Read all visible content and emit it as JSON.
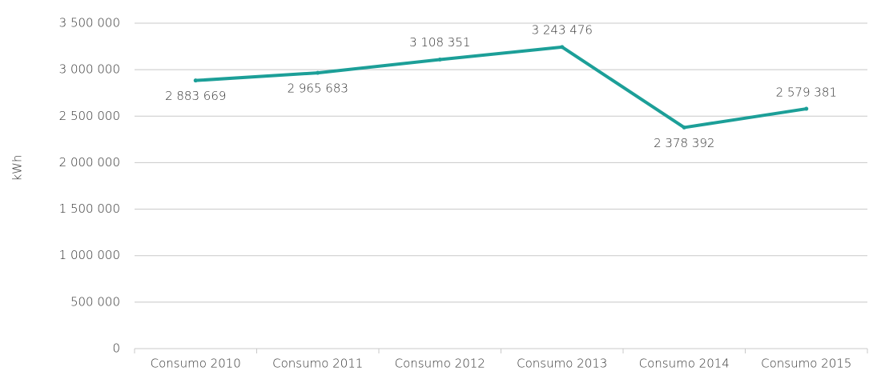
{
  "chart_data": {
    "type": "line",
    "y_label": "kWh",
    "categories": [
      "Consumo 2010",
      "Consumo 2011",
      "Consumo 2012",
      "Consumo 2013",
      "Consumo 2014",
      "Consumo 2015"
    ],
    "series": [
      {
        "name": "Consumo",
        "color": "#1c9f98",
        "values": [
          2883669,
          2965683,
          3108351,
          3243476,
          2378392,
          2579381
        ],
        "value_labels": [
          "2 883 669",
          "2 965 683",
          "3 108 351",
          "3 243 476",
          "2 378 392",
          "2 579 381"
        ]
      }
    ],
    "ylim": [
      0,
      3500000
    ],
    "yticks": [
      0,
      {
        "value": 500000,
        "label": "500 000"
      },
      {
        "value": 1000000,
        "label": "1 000 000"
      },
      {
        "value": 1500000,
        "label": "1 500 000"
      },
      {
        "value": 2000000,
        "label": "2 000 000"
      },
      {
        "value": 2500000,
        "label": "2 500 000"
      },
      {
        "value": 3000000,
        "label": "3 000 000"
      },
      {
        "value": 3500000,
        "label": "3 500 000"
      }
    ],
    "grid": true
  }
}
